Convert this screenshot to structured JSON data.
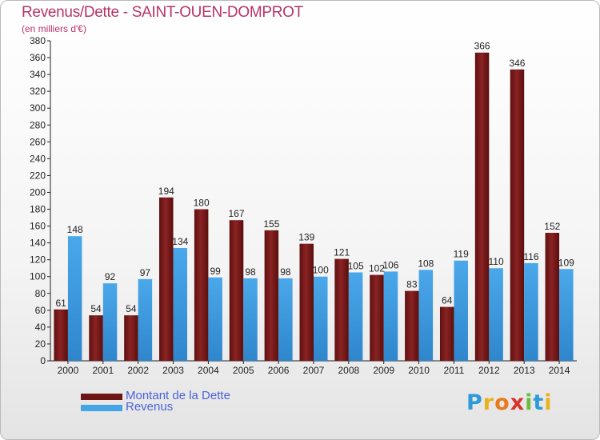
{
  "header": {
    "title": "Revenus/Dette - SAINT-OUEN-DOMPROT",
    "subtitle": "(en milliers d'€)"
  },
  "legend": {
    "debt_label": "Montant de la Dette",
    "revenue_label": "Revenus"
  },
  "logo": {
    "letters": [
      "P",
      "r",
      "o",
      "x",
      "i",
      "t",
      "i"
    ],
    "colors": [
      "#2f9ad8",
      "#e8b21e",
      "#e87a1e",
      "#d8332a",
      "#6cbd3b",
      "#2f9ad8",
      "#e8b21e"
    ]
  },
  "colors": {
    "debt": "#7d1c1c",
    "revenue": "#43a4e6"
  },
  "chart_data": {
    "type": "bar",
    "categories": [
      "2000",
      "2001",
      "2002",
      "2003",
      "2004",
      "2005",
      "2006",
      "2007",
      "2008",
      "2009",
      "2010",
      "2011",
      "2012",
      "2013",
      "2014"
    ],
    "series": [
      {
        "name": "Montant de la Dette",
        "values": [
          61,
          54,
          54,
          194,
          180,
          167,
          155,
          139,
          121,
          102,
          83,
          64,
          366,
          346,
          152
        ]
      },
      {
        "name": "Revenus",
        "values": [
          148,
          92,
          97,
          134,
          99,
          98,
          98,
          100,
          105,
          106,
          108,
          119,
          110,
          116,
          109
        ]
      }
    ],
    "ylim": [
      0,
      380
    ],
    "ytick_step": 20,
    "grid": false,
    "legend_position": "bottom-left"
  }
}
